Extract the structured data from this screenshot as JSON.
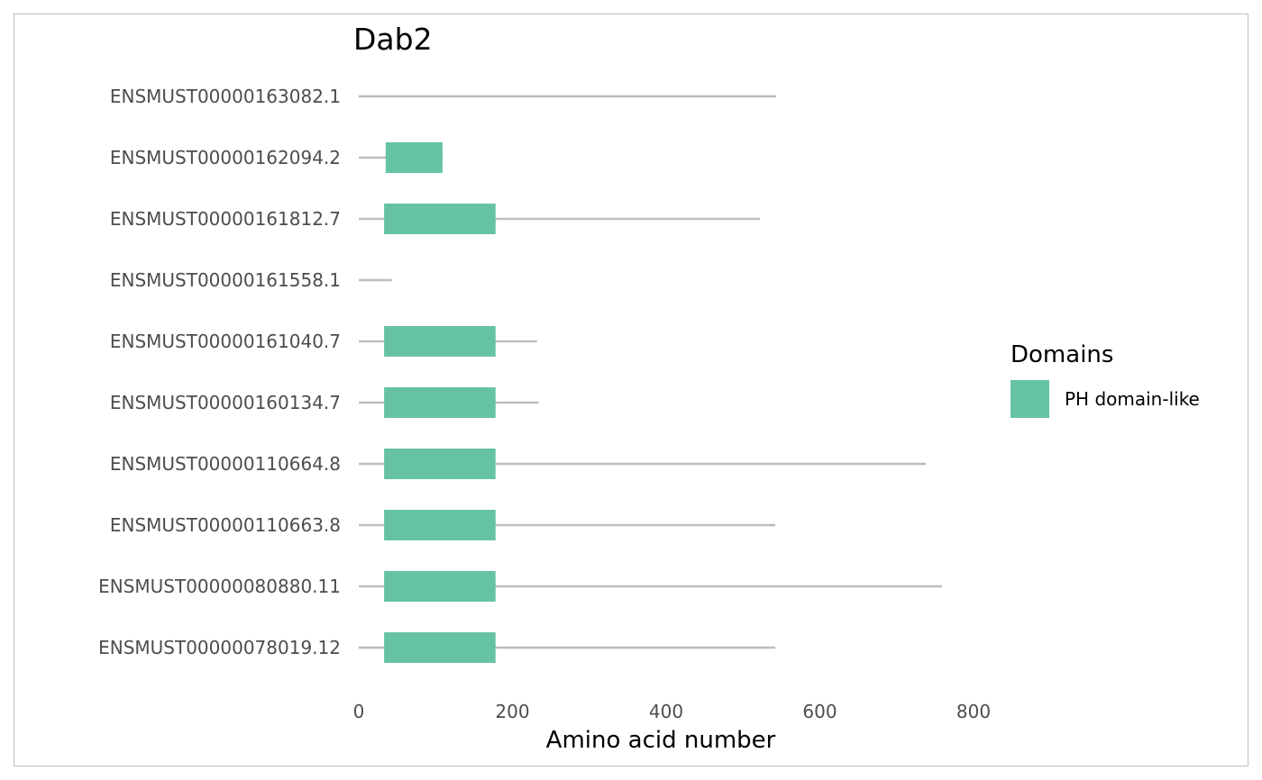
{
  "chart_data": {
    "type": "bar",
    "title": "Dab2",
    "xlabel": "Amino acid number",
    "ylabel": "",
    "xlim": [
      0,
      900
    ],
    "xticks": [
      0,
      200,
      400,
      600,
      800
    ],
    "grid": false,
    "legend": {
      "title": "Domains",
      "position": "right",
      "entries": [
        {
          "name": "PH domain-like",
          "color": "#66c2a5"
        }
      ]
    },
    "line_color": "#bdbdbd",
    "transcripts": [
      {
        "id": "ENSMUST00000163082.1",
        "length": 543,
        "domains": []
      },
      {
        "id": "ENSMUST00000162094.2",
        "length": 109,
        "domains": [
          {
            "name": "PH domain-like",
            "start": 35,
            "end": 109
          }
        ]
      },
      {
        "id": "ENSMUST00000161812.7",
        "length": 522,
        "domains": [
          {
            "name": "PH domain-like",
            "start": 33,
            "end": 178
          }
        ]
      },
      {
        "id": "ENSMUST00000161558.1",
        "length": 43,
        "domains": []
      },
      {
        "id": "ENSMUST00000161040.7",
        "length": 232,
        "domains": [
          {
            "name": "PH domain-like",
            "start": 33,
            "end": 178
          }
        ]
      },
      {
        "id": "ENSMUST00000160134.7",
        "length": 234,
        "domains": [
          {
            "name": "PH domain-like",
            "start": 33,
            "end": 178
          }
        ]
      },
      {
        "id": "ENSMUST00000110664.8",
        "length": 738,
        "domains": [
          {
            "name": "PH domain-like",
            "start": 33,
            "end": 178
          }
        ]
      },
      {
        "id": "ENSMUST00000110663.8",
        "length": 542,
        "domains": [
          {
            "name": "PH domain-like",
            "start": 33,
            "end": 178
          }
        ]
      },
      {
        "id": "ENSMUST00000080880.11",
        "length": 759,
        "domains": [
          {
            "name": "PH domain-like",
            "start": 33,
            "end": 178
          }
        ]
      },
      {
        "id": "ENSMUST00000078019.12",
        "length": 542,
        "domains": [
          {
            "name": "PH domain-like",
            "start": 33,
            "end": 178
          }
        ]
      }
    ]
  }
}
